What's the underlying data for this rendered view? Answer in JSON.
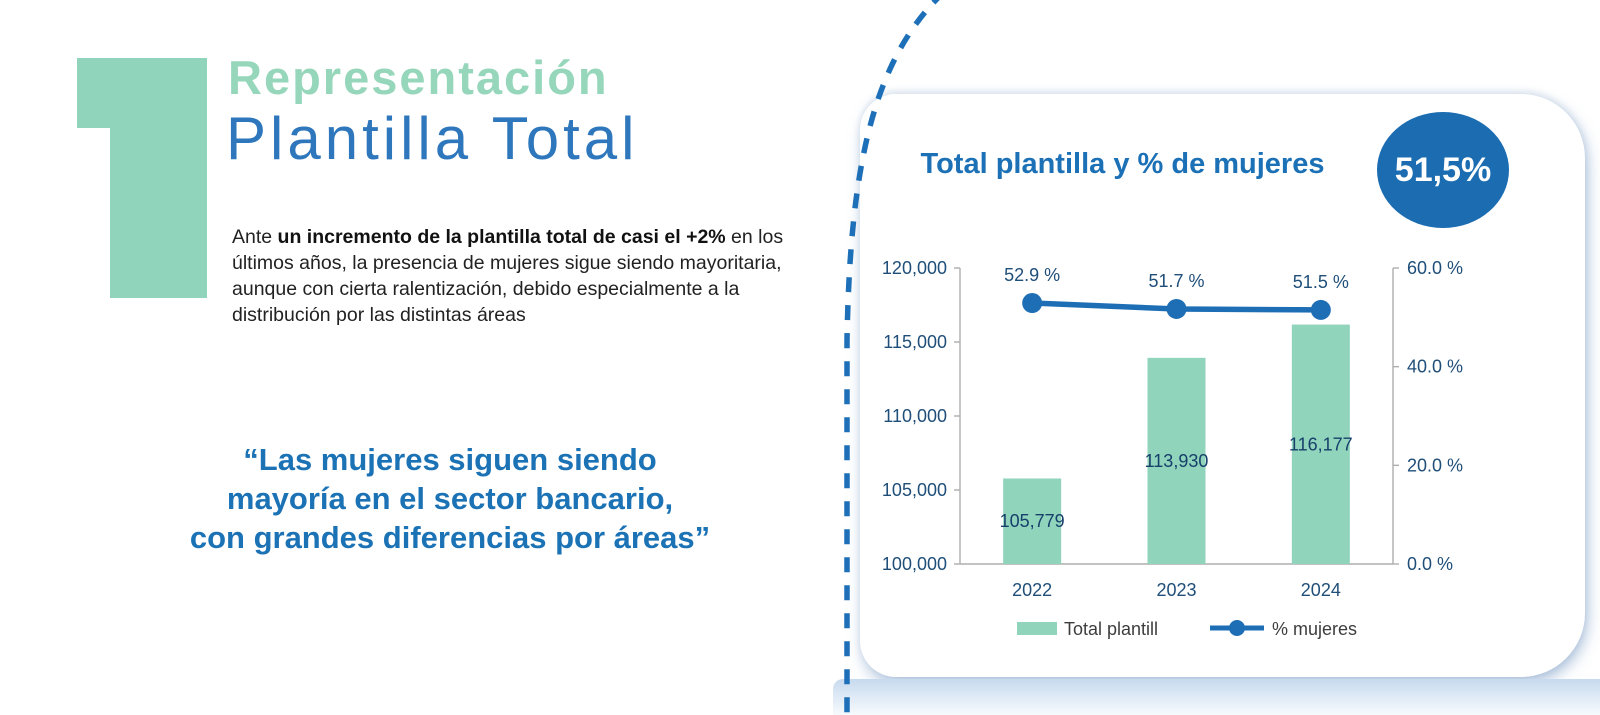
{
  "header": {
    "number": "1",
    "kicker": "Representación",
    "title": "Plantilla Total"
  },
  "intro": {
    "pre": "Ante ",
    "bold": "un incremento de la plantilla total de casi el +2%",
    "post": " en los últimos años, la presencia de mujeres sigue siendo mayoritaria, aunque con cierta ralentización, debido especialmente a la distribución por las distintas áreas"
  },
  "quote": {
    "text": "“Las mujeres siguen siendo\nmayoría en el sector bancario,\ncon grandes diferencias por áreas”"
  },
  "panel": {
    "badge": "51,5%"
  },
  "colors": {
    "mint": "#8fd4bb",
    "numeral_mint": "#90d5bb",
    "kicker_mint": "#96d6bb",
    "heading_blue": "#2e77bc",
    "quote_blue": "#1b72b5",
    "title_blue": "#1b70b6",
    "badge_blue": "#1b6cb1",
    "line_blue": "#1e6eb5",
    "axis_label_navy": "#1f4e79",
    "dashed_curve_blue": "#1d6fb8"
  },
  "chart_data": {
    "type": "bar",
    "title": "Total plantilla y % de mujeres",
    "categories": [
      "2022",
      "2023",
      "2024"
    ],
    "series": [
      {
        "name": "Total plantill",
        "type": "bar",
        "values": [
          105779,
          113930,
          116177
        ],
        "labels": [
          "105,779",
          "113,930",
          "116,177"
        ],
        "color": "#8fd4bb"
      },
      {
        "name": "% mujeres",
        "type": "line",
        "values": [
          52.9,
          51.7,
          51.5
        ],
        "labels": [
          "52.9 %",
          "51.7 %",
          "51.5 %"
        ],
        "color": "#1e6eb5"
      }
    ],
    "left_axis": {
      "min": 100000,
      "max": 120000,
      "step": 5000,
      "tick_labels": [
        "100,000",
        "105,000",
        "110,000",
        "115,000",
        "120,000"
      ]
    },
    "right_axis": {
      "min": 0,
      "max": 60,
      "step": 20,
      "tick_labels": [
        "0.0 %",
        "20.0 %",
        "40.0 %",
        "60.0 %"
      ]
    },
    "legend_position": "bottom",
    "grid": false
  }
}
